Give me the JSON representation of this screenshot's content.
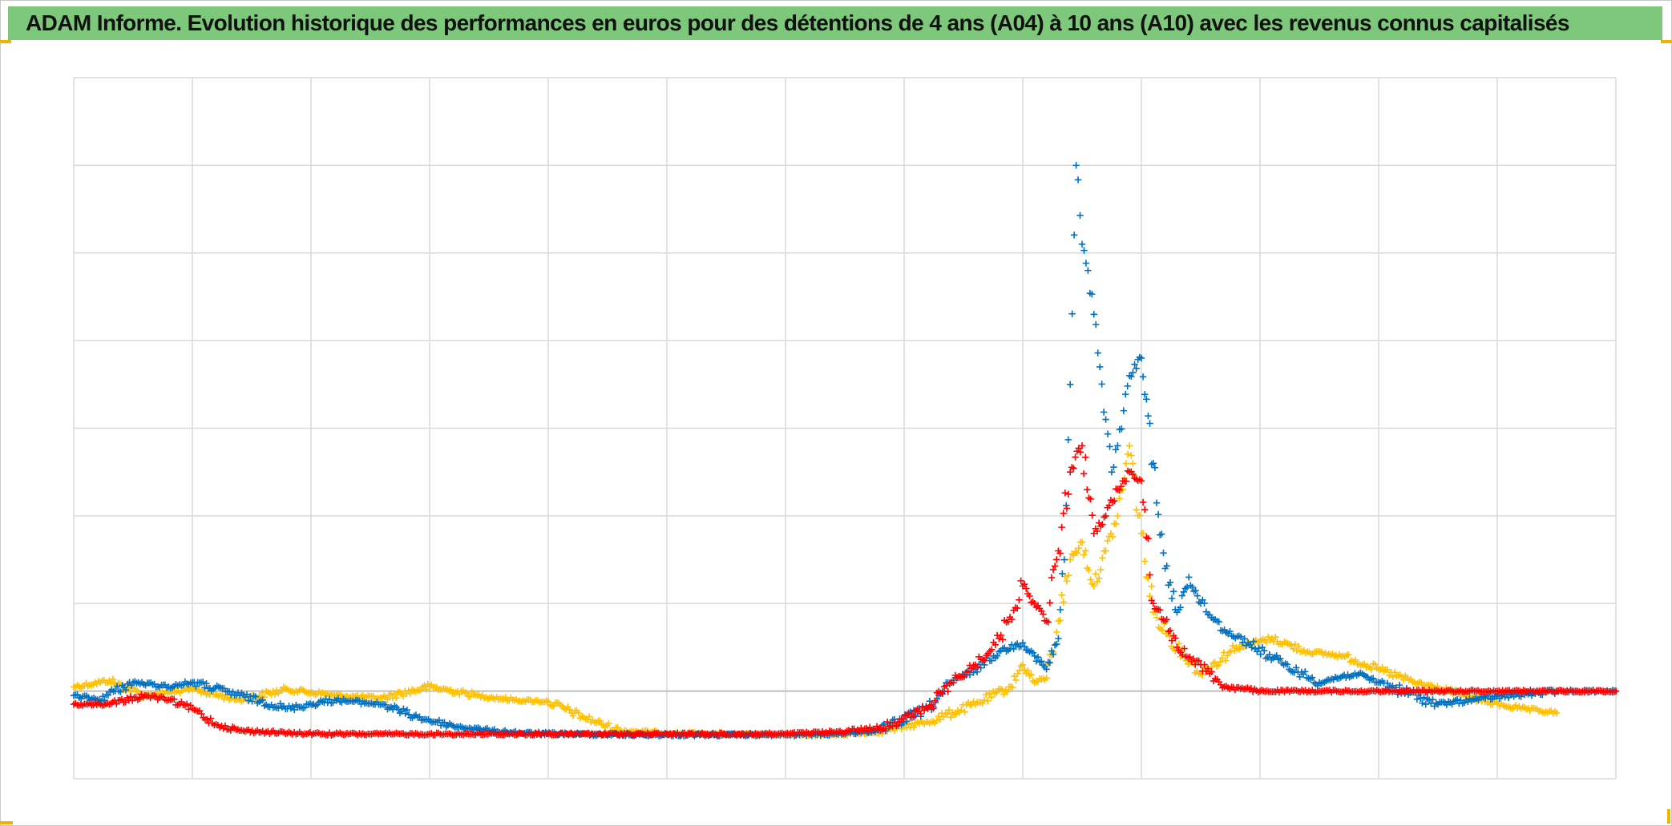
{
  "title": "ADAM Informe. Evolution historique des performances en euros pour des détentions de 4 ans (A04) à 10 ans (A10) avec les revenus connus capitalisés",
  "colors": {
    "background": "#ffffff",
    "title_bar": "#7dc87a",
    "grid": "#d9d9d9",
    "baseline": "#bfbfbf",
    "corner_accent": "#f0b400"
  },
  "chart_data": {
    "type": "scatter",
    "marker": "plus",
    "grid": true,
    "legend": "none",
    "x_tick_labels_shown": false,
    "y_tick_labels_shown": false,
    "xlim": [
      0,
      13
    ],
    "ylim": [
      -1,
      7
    ],
    "x_gridlines": 13,
    "y_gridlines": 8,
    "series": [
      {
        "color": "#ffc000",
        "x": [
          0.0,
          0.3,
          0.6,
          1.0,
          1.4,
          1.8,
          2.2,
          2.6,
          3.0,
          3.4,
          3.7,
          4.0,
          4.3,
          4.6,
          5.0,
          5.5,
          6.0,
          6.4,
          6.8,
          7.2,
          7.6,
          7.9,
          8.0,
          8.1,
          8.2,
          8.3,
          8.4,
          8.5,
          8.6,
          8.7,
          8.8,
          8.9,
          9.0,
          9.1,
          9.3,
          9.5,
          9.8,
          10.1,
          10.4,
          10.7,
          11.0,
          11.3,
          11.6,
          11.9,
          12.2,
          12.5
        ],
        "y": [
          0.05,
          0.12,
          -0.05,
          0.02,
          -0.1,
          0.02,
          -0.05,
          -0.08,
          0.05,
          -0.05,
          -0.1,
          -0.12,
          -0.3,
          -0.45,
          -0.48,
          -0.49,
          -0.5,
          -0.5,
          -0.46,
          -0.35,
          -0.15,
          0.05,
          0.3,
          0.1,
          0.15,
          0.8,
          1.5,
          1.7,
          1.2,
          1.6,
          2.0,
          2.8,
          1.8,
          0.9,
          0.5,
          0.2,
          0.5,
          0.6,
          0.45,
          0.4,
          0.25,
          0.1,
          0.0,
          -0.12,
          -0.2,
          -0.25
        ]
      },
      {
        "color": "#0070c0",
        "x": [
          0.0,
          0.2,
          0.5,
          0.8,
          1.0,
          1.4,
          1.8,
          2.2,
          2.6,
          2.9,
          3.2,
          3.5,
          3.8,
          4.2,
          4.8,
          5.5,
          6.0,
          6.4,
          6.8,
          7.2,
          7.4,
          7.6,
          7.8,
          8.0,
          8.1,
          8.2,
          8.3,
          8.35,
          8.4,
          8.45,
          8.5,
          8.55,
          8.6,
          8.65,
          8.7,
          8.75,
          8.8,
          8.85,
          8.9,
          9.0,
          9.1,
          9.2,
          9.3,
          9.4,
          9.5,
          9.7,
          9.9,
          10.2,
          10.5,
          10.8,
          11.0,
          11.5,
          11.9,
          12.5,
          13.0
        ],
        "y": [
          -0.05,
          -0.1,
          0.1,
          0.05,
          0.1,
          -0.05,
          -0.2,
          -0.1,
          -0.15,
          -0.3,
          -0.4,
          -0.45,
          -0.48,
          -0.49,
          -0.5,
          -0.5,
          -0.5,
          -0.49,
          -0.45,
          -0.2,
          0.1,
          0.25,
          0.45,
          0.55,
          0.4,
          0.25,
          0.6,
          1.5,
          3.5,
          6.0,
          5.1,
          4.8,
          4.3,
          3.7,
          3.1,
          2.5,
          2.8,
          3.2,
          3.6,
          3.8,
          2.6,
          1.4,
          0.9,
          1.3,
          1.0,
          0.7,
          0.55,
          0.3,
          0.1,
          0.2,
          0.1,
          -0.15,
          -0.08,
          0.0,
          0.0
        ]
      },
      {
        "color": "#ff0000",
        "x": [
          0.0,
          0.3,
          0.6,
          0.8,
          1.0,
          1.2,
          1.4,
          1.8,
          2.2,
          2.6,
          3.0,
          4.0,
          5.0,
          6.0,
          6.4,
          6.8,
          7.2,
          7.4,
          7.6,
          7.8,
          8.0,
          8.1,
          8.2,
          8.3,
          8.4,
          8.5,
          8.6,
          8.7,
          8.8,
          8.9,
          9.0,
          9.1,
          9.2,
          9.3,
          9.5,
          9.7,
          10.0,
          10.5,
          11.0,
          11.5,
          12.0,
          12.5,
          13.0
        ],
        "y": [
          -0.15,
          -0.15,
          -0.05,
          -0.1,
          -0.2,
          -0.38,
          -0.45,
          -0.48,
          -0.49,
          -0.49,
          -0.49,
          -0.49,
          -0.49,
          -0.49,
          -0.47,
          -0.42,
          -0.2,
          0.1,
          0.3,
          0.6,
          1.2,
          1.0,
          0.8,
          1.6,
          2.5,
          2.8,
          1.8,
          2.0,
          2.3,
          2.5,
          2.4,
          1.0,
          0.8,
          0.5,
          0.3,
          0.05,
          0.0,
          0.0,
          0.0,
          0.0,
          0.0,
          0.0,
          0.0
        ]
      }
    ]
  }
}
